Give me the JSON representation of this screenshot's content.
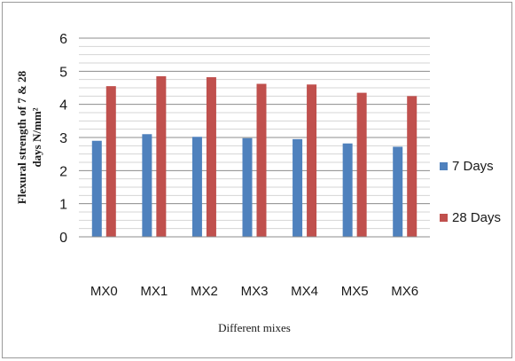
{
  "chart_data": {
    "type": "bar",
    "categories": [
      "MX0",
      "MX1",
      "MX2",
      "MX3",
      "MX4",
      "MX5",
      "MX6"
    ],
    "series": [
      {
        "name": "7 Days",
        "color": "#4f81bd",
        "values": [
          2.9,
          3.1,
          3.02,
          2.98,
          2.95,
          2.82,
          2.72
        ]
      },
      {
        "name": "28 Days",
        "color": "#c0504d",
        "values": [
          4.55,
          4.85,
          4.82,
          4.62,
          4.6,
          4.35,
          4.25
        ]
      }
    ],
    "title": "",
    "xlabel": "Different mixes",
    "ylabel_line1": "Flexural strength of 7 & 28",
    "ylabel_line2": "days N/mm²",
    "ylim": [
      0,
      6
    ],
    "yticks": [
      0,
      1,
      2,
      3,
      4,
      5,
      6
    ],
    "grid": true,
    "legend_position": "right"
  }
}
